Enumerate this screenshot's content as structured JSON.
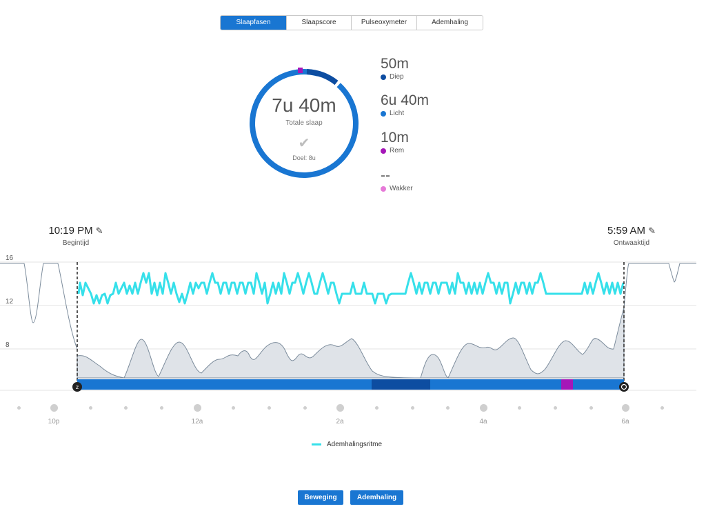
{
  "tabs": [
    {
      "label": "Slaapfasen",
      "active": true
    },
    {
      "label": "Slaapscore",
      "active": false
    },
    {
      "label": "Pulseoxymeter",
      "active": false
    },
    {
      "label": "Ademhaling",
      "active": false
    }
  ],
  "summary": {
    "total": "7u 40m",
    "total_label": "Totale slaap",
    "goal_label": "Doel: 8u"
  },
  "stages": [
    {
      "value": "50m",
      "label": "Diep",
      "color": "#0d4da1"
    },
    {
      "value": "6u 40m",
      "label": "Licht",
      "color": "#1976d2"
    },
    {
      "value": "10m",
      "label": "Rem",
      "color": "#a517b8"
    },
    {
      "value": "--",
      "label": "Wakker",
      "color": "#e67ad8"
    }
  ],
  "start": {
    "time": "10:19 PM",
    "label": "Begintijd"
  },
  "end": {
    "time": "5:59 AM",
    "label": "Ontwaaktijd"
  },
  "chart_data": {
    "type": "line",
    "y_ticks": [
      "16",
      "12",
      "8"
    ],
    "ylim": [
      4,
      16
    ],
    "x_labels": [
      "10p",
      "12a",
      "2a",
      "4a",
      "6a"
    ],
    "series": [
      {
        "name": "Ademhalingsritme",
        "color": "#36e0ea"
      }
    ],
    "stage_bar": [
      {
        "stage": "Licht",
        "color": "#1976d2"
      },
      {
        "stage": "Diep",
        "color": "#0d4da1"
      },
      {
        "stage": "Licht",
        "color": "#1976d2"
      },
      {
        "stage": "Rem",
        "color": "#a517b8"
      },
      {
        "stage": "Licht",
        "color": "#1976d2"
      }
    ]
  },
  "legend_label": "Ademhalingsritme",
  "buttons": {
    "movement": "Beweging",
    "breathing": "Ademhaling"
  },
  "icons": {
    "pencil": "pencil-icon",
    "check": "check-icon"
  }
}
